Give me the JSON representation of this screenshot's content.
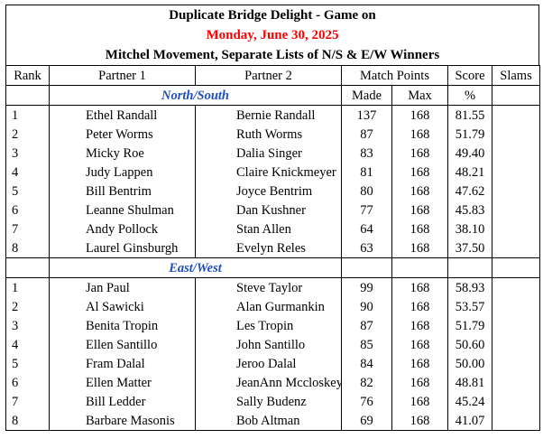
{
  "header": {
    "title": "Duplicate Bridge Delight - Game on",
    "date": "Monday, June 30, 2025",
    "subtitle": "Mitchel Movement, Separate Lists of N/S & E/W Winners"
  },
  "columns": {
    "rank": "Rank",
    "partner1": "Partner 1",
    "partner2": "Partner 2",
    "match_points": "Match Points",
    "made": "Made",
    "max": "Max",
    "score": "Score",
    "percent": "%",
    "slams": "Slams"
  },
  "colors": {
    "date": "#ff0000",
    "section": "#1f4fbf"
  },
  "sections": [
    {
      "label": "North/South",
      "rows": [
        {
          "rank": "1",
          "p1": "Ethel Randall",
          "p2": "Bernie Randall",
          "made": "137",
          "max": "168",
          "score": "81.55"
        },
        {
          "rank": "2",
          "p1": "Peter Worms",
          "p2": "Ruth Worms",
          "made": "87",
          "max": "168",
          "score": "51.79"
        },
        {
          "rank": "3",
          "p1": "Micky Roe",
          "p2": "Dalia Singer",
          "made": "83",
          "max": "168",
          "score": "49.40"
        },
        {
          "rank": "4",
          "p1": "Judy Lappen",
          "p2": "Claire Knickmeyer",
          "made": "81",
          "max": "168",
          "score": "48.21"
        },
        {
          "rank": "5",
          "p1": "Bill Bentrim",
          "p2": "Joyce Bentrim",
          "made": "80",
          "max": "168",
          "score": "47.62"
        },
        {
          "rank": "6",
          "p1": "Leanne Shulman",
          "p2": "Dan Kushner",
          "made": "77",
          "max": "168",
          "score": "45.83"
        },
        {
          "rank": "7",
          "p1": "Andy Pollock",
          "p2": "Stan Allen",
          "made": "64",
          "max": "168",
          "score": "38.10"
        },
        {
          "rank": "8",
          "p1": "Laurel Ginsburgh",
          "p2": "Evelyn Reles",
          "made": "63",
          "max": "168",
          "score": "37.50"
        }
      ]
    },
    {
      "label": "East/West",
      "rows": [
        {
          "rank": "1",
          "p1": "Jan Paul",
          "p2": "Steve Taylor",
          "made": "99",
          "max": "168",
          "score": "58.93"
        },
        {
          "rank": "2",
          "p1": "Al Sawicki",
          "p2": "Alan Gurmankin",
          "made": "90",
          "max": "168",
          "score": "53.57"
        },
        {
          "rank": "3",
          "p1": "Benita Tropin",
          "p2": "Les Tropin",
          "made": "87",
          "max": "168",
          "score": "51.79"
        },
        {
          "rank": "4",
          "p1": "Ellen Santillo",
          "p2": "John Santillo",
          "made": "85",
          "max": "168",
          "score": "50.60"
        },
        {
          "rank": "5",
          "p1": "Fram Dalal",
          "p2": "Jeroo Dalal",
          "made": "84",
          "max": "168",
          "score": "50.00"
        },
        {
          "rank": "6",
          "p1": "Ellen Matter",
          "p2": "JeanAnn Mccloskey",
          "made": "82",
          "max": "168",
          "score": "48.81"
        },
        {
          "rank": "7",
          "p1": "Bill Ledder",
          "p2": "Sally Budenz",
          "made": "76",
          "max": "168",
          "score": "45.24"
        },
        {
          "rank": "8",
          "p1": "Barbare Masonis",
          "p2": "Bob Altman",
          "made": "69",
          "max": "168",
          "score": "41.07"
        }
      ]
    }
  ]
}
